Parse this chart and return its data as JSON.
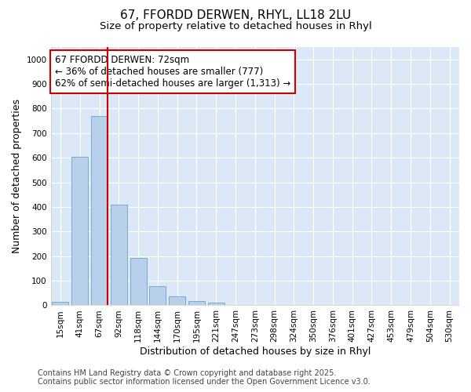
{
  "title_line1": "67, FFORDD DERWEN, RHYL, LL18 2LU",
  "title_line2": "Size of property relative to detached houses in Rhyl",
  "xlabel": "Distribution of detached houses by size in Rhyl",
  "ylabel": "Number of detached properties",
  "categories": [
    "15sqm",
    "41sqm",
    "67sqm",
    "92sqm",
    "118sqm",
    "144sqm",
    "170sqm",
    "195sqm",
    "221sqm",
    "247sqm",
    "273sqm",
    "298sqm",
    "324sqm",
    "350sqm",
    "376sqm",
    "401sqm",
    "427sqm",
    "453sqm",
    "479sqm",
    "504sqm",
    "530sqm"
  ],
  "values": [
    15,
    605,
    770,
    410,
    192,
    78,
    38,
    18,
    10,
    3,
    0,
    0,
    0,
    0,
    0,
    0,
    0,
    0,
    0,
    0,
    0
  ],
  "bar_color": "#b8d0ea",
  "bar_edge_color": "#7aaad0",
  "vline_x_index": 2,
  "vline_color": "#cc0000",
  "annotation_text": "67 FFORDD DERWEN: 72sqm\n← 36% of detached houses are smaller (777)\n62% of semi-detached houses are larger (1,313) →",
  "annotation_box_facecolor": "#ffffff",
  "annotation_box_edgecolor": "#cc0000",
  "ylim": [
    0,
    1050
  ],
  "yticks": [
    0,
    100,
    200,
    300,
    400,
    500,
    600,
    700,
    800,
    900,
    1000
  ],
  "figure_background_color": "#ffffff",
  "plot_background_color": "#dce8f5",
  "grid_color": "#ffffff",
  "footer_text": "Contains HM Land Registry data © Crown copyright and database right 2025.\nContains public sector information licensed under the Open Government Licence v3.0.",
  "title_fontsize": 11,
  "subtitle_fontsize": 9.5,
  "axis_label_fontsize": 9,
  "tick_fontsize": 7.5,
  "annotation_fontsize": 8.5,
  "footer_fontsize": 7
}
